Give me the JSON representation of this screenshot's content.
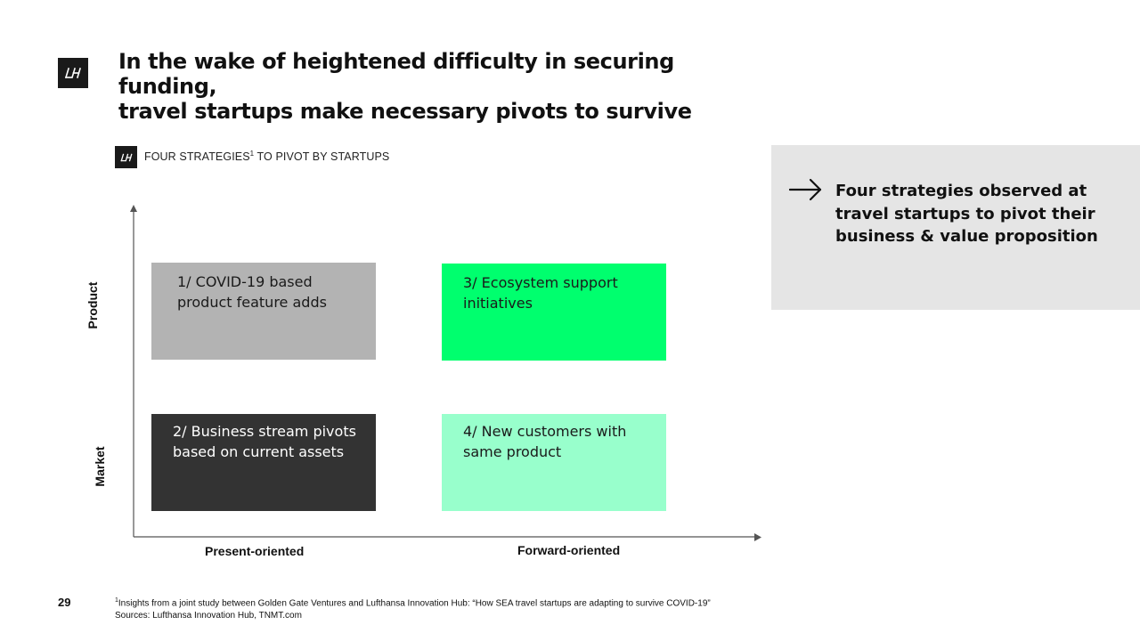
{
  "slide": {
    "title_lines": [
      "In the wake of heightened difficulty in securing funding,",
      "travel startups make necessary pivots to survive"
    ],
    "logo_text": "LH",
    "section_label": {
      "text": "FOUR STRATEGIES",
      "superscript": "1",
      "suffix": " TO PIVOT BY STARTUPS"
    }
  },
  "matrix": {
    "y_axis": {
      "top": "Product",
      "bottom": "Market"
    },
    "x_axis": {
      "left": "Present-oriented",
      "right": "Forward-oriented"
    },
    "boxes": [
      {
        "lines": [
          "1/ COVID-19 based",
          "product feature adds"
        ],
        "color": "#b3b3b3"
      },
      {
        "lines": [
          "2/ Business stream pivots",
          "based on current assets"
        ],
        "color": "#333333"
      },
      {
        "lines": [
          "3/ Ecosystem support",
          "initiatives"
        ],
        "color": "#00ff6e"
      },
      {
        "lines": [
          "4/ New customers with",
          "same product"
        ],
        "color": "#98ffcc"
      }
    ]
  },
  "callout": {
    "icon": "arrow-right-icon",
    "lines": [
      "Four strategies observed at",
      "travel startups to pivot their",
      "business & value proposition"
    ],
    "background": "#e5e5e5"
  },
  "footer": {
    "page_number": "29",
    "footnote_marker": "1",
    "footnote": "Insights from a joint study between Golden Gate Ventures and Lufthansa Innovation Hub: “How SEA travel startups are adapting to survive COVID-19”",
    "sources": "Sources: Lufthansa Innovation Hub, TNMT.com"
  }
}
